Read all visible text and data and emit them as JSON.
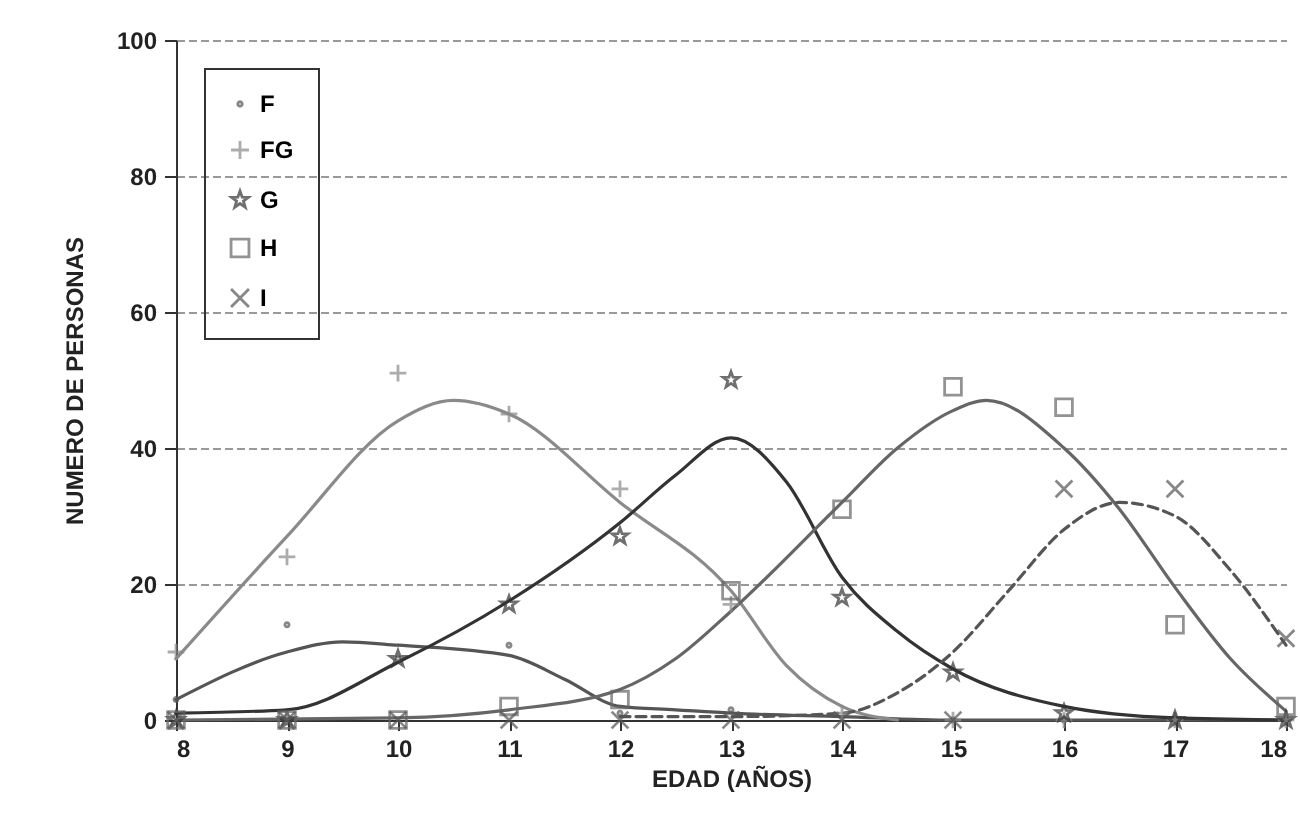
{
  "chart_data": {
    "type": "scatter",
    "xlabel": "EDAD (AÑOS)",
    "ylabel": "NUMERO DE PERSONAS",
    "x": [
      8,
      9,
      10,
      11,
      12,
      13,
      14,
      15,
      16,
      17,
      18
    ],
    "xlim": [
      8,
      18
    ],
    "xticks": [
      8,
      9,
      10,
      11,
      12,
      13,
      14,
      15,
      16,
      17,
      18
    ],
    "ylim": [
      0,
      100
    ],
    "yticks": [
      0,
      20,
      40,
      60,
      80,
      100
    ],
    "grid": "y",
    "legend": "top left",
    "series": [
      {
        "name": "F",
        "type": "scatter",
        "marker": "circle",
        "color": "#555555",
        "values": [
          3,
          14,
          9,
          11,
          1,
          1.5,
          null,
          0,
          0,
          0,
          0
        ]
      },
      {
        "name": "FG",
        "type": "scatter",
        "marker": "cross",
        "color": "#8a8a8a",
        "values": [
          10,
          24,
          51,
          45,
          34,
          17,
          1,
          0,
          0,
          0,
          0
        ]
      },
      {
        "name": "G",
        "type": "scatter",
        "marker": "star",
        "color": "#333333",
        "values": [
          0,
          0,
          9,
          17,
          27,
          50,
          18,
          7,
          1,
          0,
          0
        ]
      },
      {
        "name": "H",
        "type": "scatter",
        "marker": "square",
        "color": "#666666",
        "values": [
          0,
          0,
          0,
          2,
          3,
          19,
          31,
          49,
          46,
          14,
          2
        ]
      },
      {
        "name": "I",
        "type": "scatter",
        "marker": "x",
        "color": "#555555",
        "values": [
          0,
          0,
          0,
          0,
          0,
          0,
          0,
          0,
          34,
          34,
          12
        ]
      },
      {
        "type": "line",
        "color": "#555555",
        "line_style": "solid",
        "x": [
          8,
          9,
          9.5,
          10,
          11,
          11.5,
          12,
          12.5,
          13,
          14,
          15,
          16,
          17,
          18
        ],
        "values": [
          3,
          10,
          11.5,
          11,
          9.5,
          6,
          2,
          1.5,
          1,
          0.5,
          0,
          0,
          0,
          0
        ]
      },
      {
        "type": "line",
        "color": "#8a8a8a",
        "line_style": "solid",
        "x": [
          8,
          9,
          10,
          10.5,
          11,
          12,
          13,
          13.5,
          14,
          14.5
        ],
        "values": [
          9,
          27,
          44,
          47,
          45,
          32,
          19,
          8,
          2,
          0
        ]
      },
      {
        "type": "line",
        "color": "#333333",
        "line_style": "solid",
        "x": [
          8,
          9,
          10,
          11,
          12,
          12.5,
          13,
          13.5,
          14,
          14.5,
          15,
          16,
          17,
          18
        ],
        "values": [
          1,
          1.5,
          8.5,
          17.5,
          29,
          36,
          41.5,
          35,
          21,
          13,
          7.5,
          2,
          0.3,
          0
        ]
      },
      {
        "type": "line",
        "color": "#666666",
        "line_style": "solid",
        "x": [
          8,
          10,
          11,
          12,
          12.5,
          13,
          14,
          14.5,
          15,
          15.3,
          16,
          16.5,
          17,
          17.5,
          18
        ],
        "values": [
          0,
          0.3,
          1.5,
          4.5,
          9,
          16,
          32,
          40,
          45.5,
          47,
          40,
          31,
          19.5,
          9,
          1.3
        ]
      },
      {
        "type": "line",
        "color": "#555555",
        "line_style": "dashed",
        "x": [
          12,
          13,
          14,
          14.5,
          15,
          15.5,
          16,
          16.5,
          17,
          17.5,
          18
        ],
        "values": [
          0.5,
          0.5,
          1,
          4,
          10,
          19,
          28,
          32,
          30,
          22,
          11
        ]
      }
    ]
  }
}
